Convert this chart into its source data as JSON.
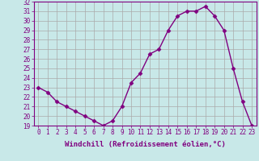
{
  "hours": [
    0,
    1,
    2,
    3,
    4,
    5,
    6,
    7,
    8,
    9,
    10,
    11,
    12,
    13,
    14,
    15,
    16,
    17,
    18,
    19,
    20,
    21,
    22,
    23
  ],
  "values": [
    23,
    22.5,
    21.5,
    21,
    20.5,
    20,
    19.5,
    19,
    19.5,
    21,
    23.5,
    24.5,
    26.5,
    27,
    29,
    30.5,
    31,
    31,
    31.5,
    30.5,
    29,
    25,
    21.5,
    19
  ],
  "line_color": "#800080",
  "marker": "D",
  "marker_size": 2.5,
  "bg_color": "#c8e8e8",
  "grid_color": "#aaaaaa",
  "xlabel": "Windchill (Refroidissement éolien,°C)",
  "ylim": [
    19,
    32
  ],
  "xlim": [
    -0.5,
    23.5
  ],
  "yticks": [
    19,
    20,
    21,
    22,
    23,
    24,
    25,
    26,
    27,
    28,
    29,
    30,
    31,
    32
  ],
  "xticks": [
    0,
    1,
    2,
    3,
    4,
    5,
    6,
    7,
    8,
    9,
    10,
    11,
    12,
    13,
    14,
    15,
    16,
    17,
    18,
    19,
    20,
    21,
    22,
    23
  ],
  "tick_color": "#800080",
  "label_color": "#800080",
  "axis_line_color": "#800080",
  "font_size_xlabel": 6.5,
  "font_size_ticks": 5.5,
  "linewidth": 1.0
}
